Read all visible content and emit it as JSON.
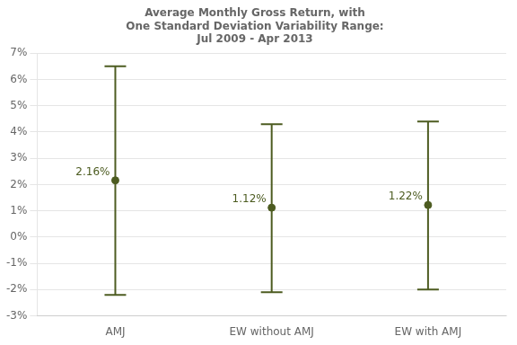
{
  "chart_data": {
    "type": "errorbar",
    "title": [
      "Average Monthly Gross Return, with",
      "One Standard Deviation Variability Range:",
      "Jul 2009 - Apr 2013"
    ],
    "categories": [
      "AMJ",
      "EW without AMJ",
      "EW with AMJ"
    ],
    "values": [
      2.16,
      1.12,
      1.22
    ],
    "value_labels": [
      "2.16%",
      "1.12%",
      "1.22%"
    ],
    "upper": [
      6.5,
      4.3,
      4.4
    ],
    "lower": [
      -2.2,
      -2.1,
      -2.0
    ],
    "color": "#4d5c21",
    "ylim": [
      -3,
      7
    ],
    "yticks": [
      {
        "value": -3,
        "label": "-3%"
      },
      {
        "value": -2,
        "label": "-2%"
      },
      {
        "value": -1,
        "label": "-1%"
      },
      {
        "value": 0,
        "label": "0%"
      },
      {
        "value": 1,
        "label": "1%"
      },
      {
        "value": 2,
        "label": "2%"
      },
      {
        "value": 3,
        "label": "3%"
      },
      {
        "value": 4,
        "label": "4%"
      },
      {
        "value": 5,
        "label": "5%"
      },
      {
        "value": 6,
        "label": "6%"
      },
      {
        "value": 7,
        "label": "7%"
      }
    ],
    "grid": true,
    "data_labels": true
  }
}
